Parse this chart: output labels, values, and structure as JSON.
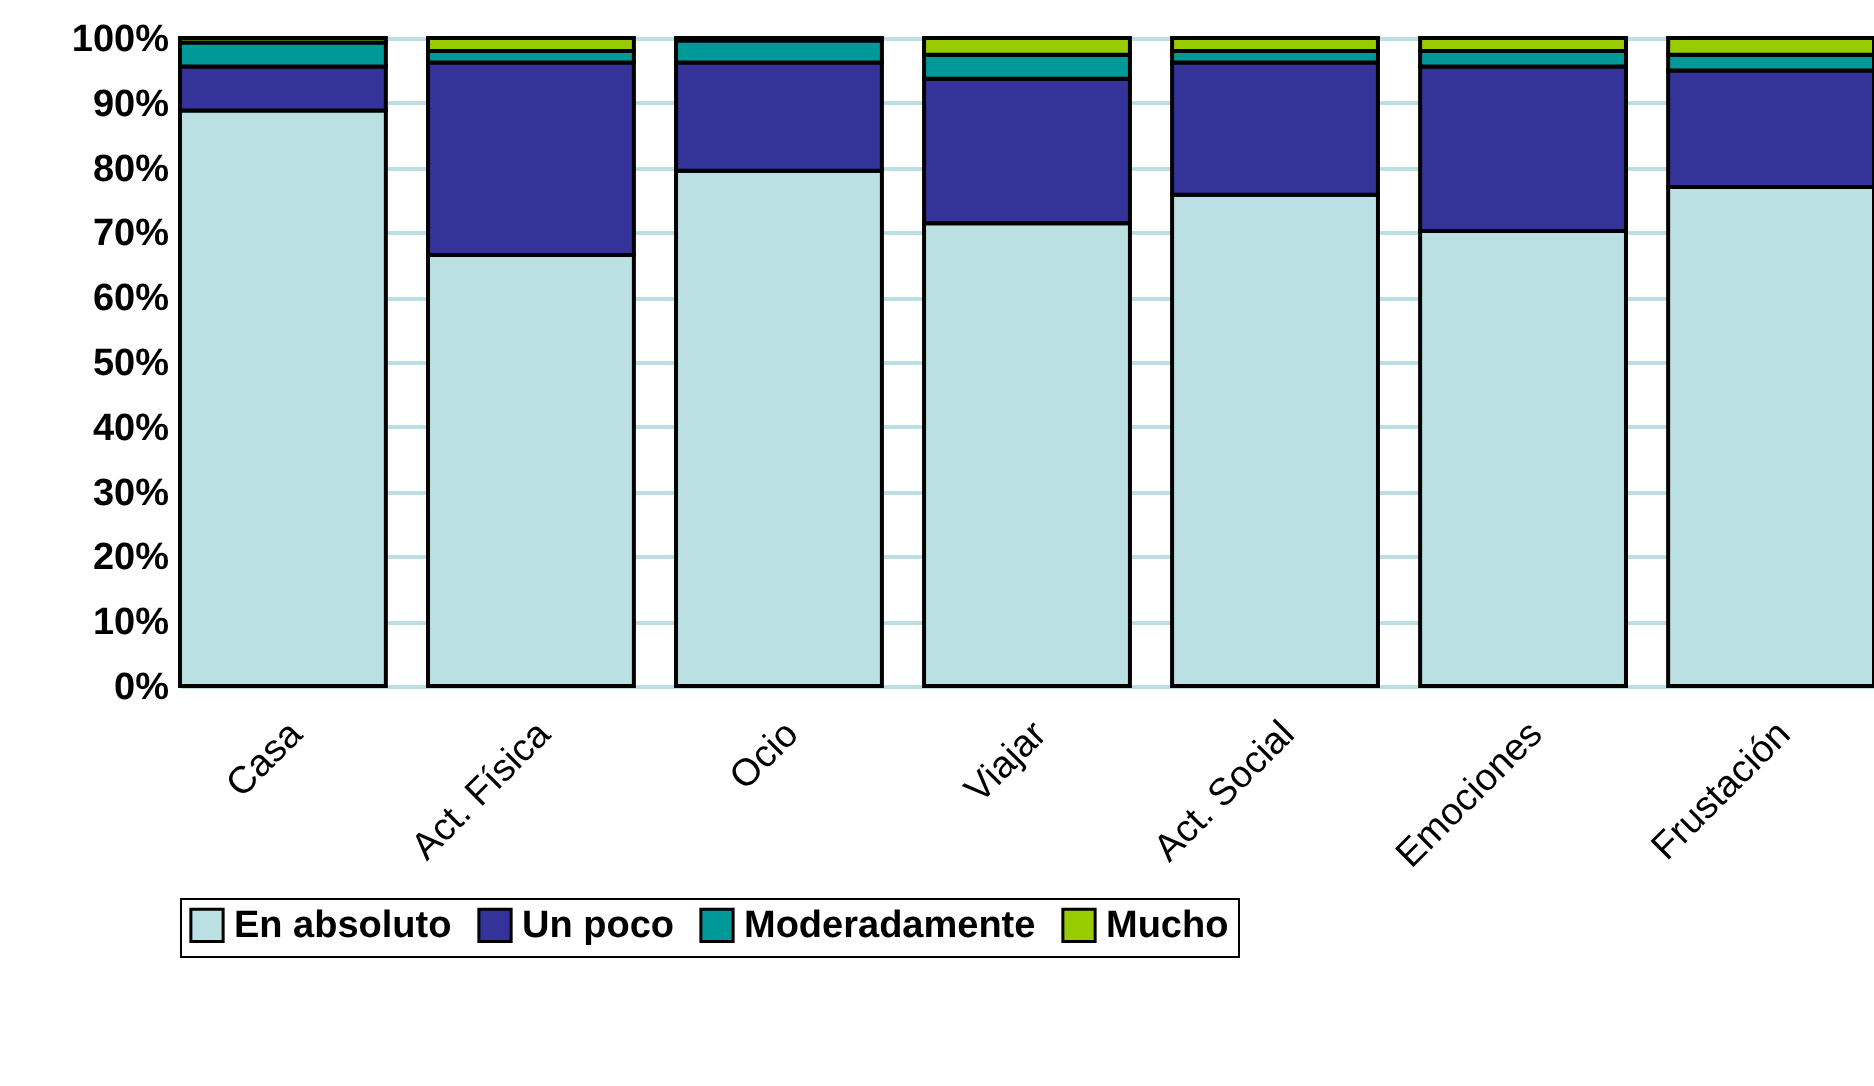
{
  "chart_data": {
    "type": "bar",
    "stacked": true,
    "categories": [
      "Casa",
      "Act. Física",
      "Ocio",
      "Viajar",
      "Act. Social",
      "Emociones",
      "Frustación"
    ],
    "series": [
      {
        "name": "En absoluto",
        "color": "#bbe0e3",
        "values": [
          88.8,
          66.5,
          79.5,
          71.4,
          75.8,
          70.2,
          77.0
        ]
      },
      {
        "name": "Un poco",
        "color": "#333399",
        "values": [
          6.8,
          29.7,
          16.7,
          22.3,
          20.4,
          25.4,
          18.0
        ]
      },
      {
        "name": "Moderadamente",
        "color": "#009999",
        "values": [
          3.7,
          1.8,
          3.4,
          3.7,
          1.8,
          2.4,
          2.4
        ]
      },
      {
        "name": "Mucho",
        "color": "#99cc00",
        "values": [
          0.7,
          2.0,
          0.4,
          2.6,
          2.0,
          2.0,
          2.6
        ]
      }
    ],
    "ylim": [
      0,
      100
    ],
    "yticks": [
      {
        "value": 0,
        "label": "0%"
      },
      {
        "value": 10,
        "label": "10%"
      },
      {
        "value": 20,
        "label": "20%"
      },
      {
        "value": 30,
        "label": "30%"
      },
      {
        "value": 40,
        "label": "40%"
      },
      {
        "value": 50,
        "label": "50%"
      },
      {
        "value": 60,
        "label": "60%"
      },
      {
        "value": 70,
        "label": "70%"
      },
      {
        "value": 80,
        "label": "80%"
      },
      {
        "value": 90,
        "label": "90%"
      },
      {
        "value": 100,
        "label": "100%"
      }
    ],
    "grid": "y",
    "legend": "bottom"
  }
}
